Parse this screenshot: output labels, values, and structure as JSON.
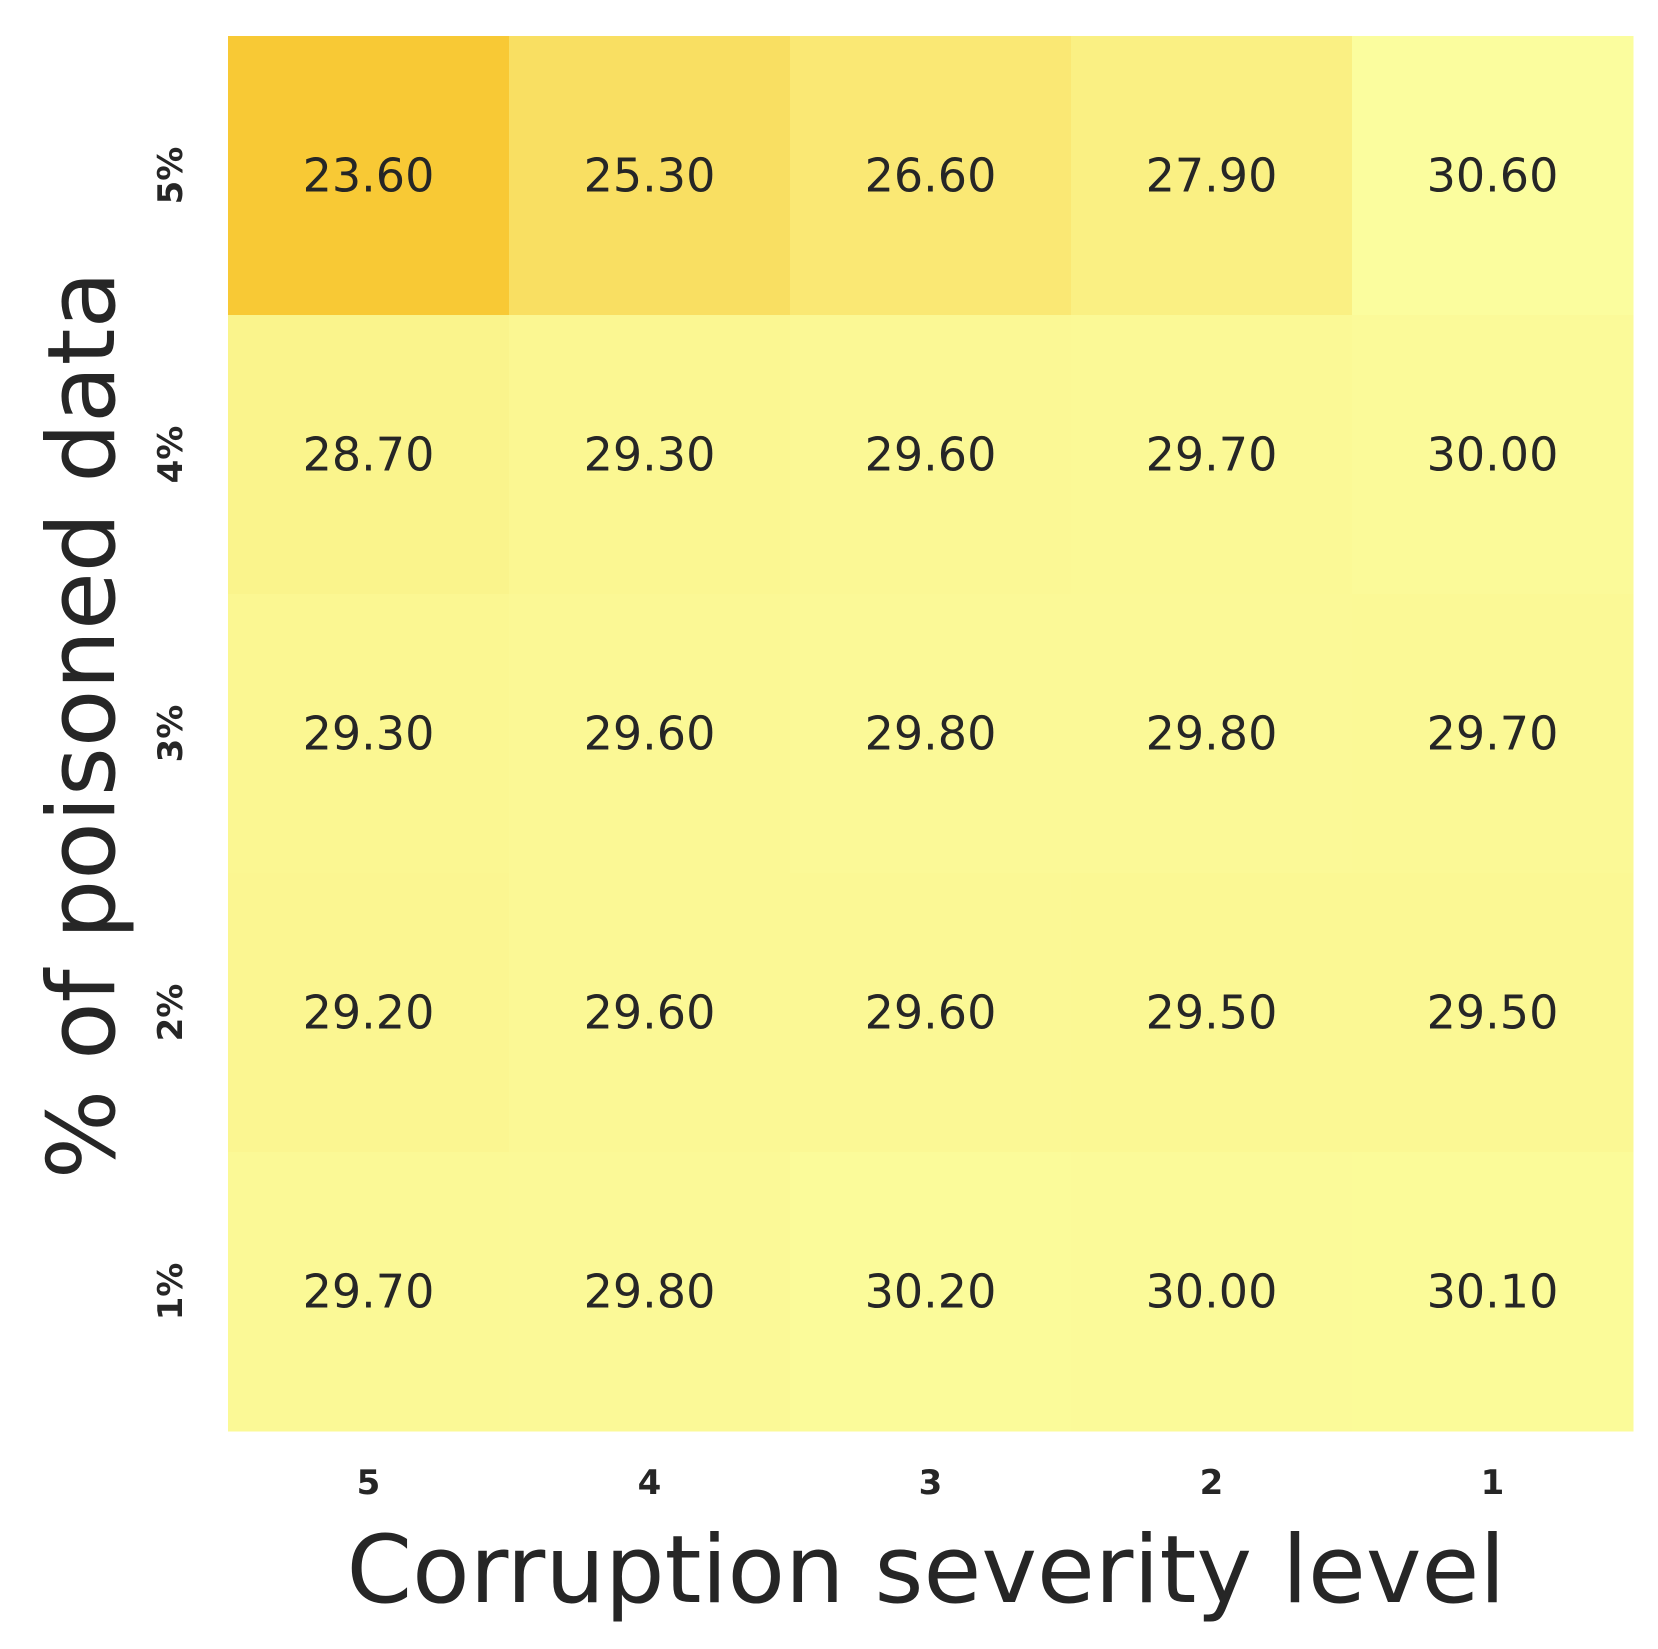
{
  "chart_data": {
    "type": "heatmap",
    "xlabel": "Corruption severity level",
    "ylabel": "% of poisoned data",
    "x_categories": [
      "5",
      "4",
      "3",
      "2",
      "1"
    ],
    "y_categories": [
      "5%",
      "4%",
      "3%",
      "2%",
      "1%"
    ],
    "values": [
      [
        23.6,
        25.3,
        26.6,
        27.9,
        30.6
      ],
      [
        28.7,
        29.3,
        29.6,
        29.7,
        30.0
      ],
      [
        29.3,
        29.6,
        29.8,
        29.8,
        29.7
      ],
      [
        29.2,
        29.6,
        29.6,
        29.5,
        29.5
      ],
      [
        29.7,
        29.8,
        30.2,
        30.0,
        30.1
      ]
    ],
    "value_format": "2 decimals",
    "colormap": {
      "low": "#f8c935",
      "high": "#fbfd9e"
    },
    "colorbar": false,
    "grid": false
  }
}
